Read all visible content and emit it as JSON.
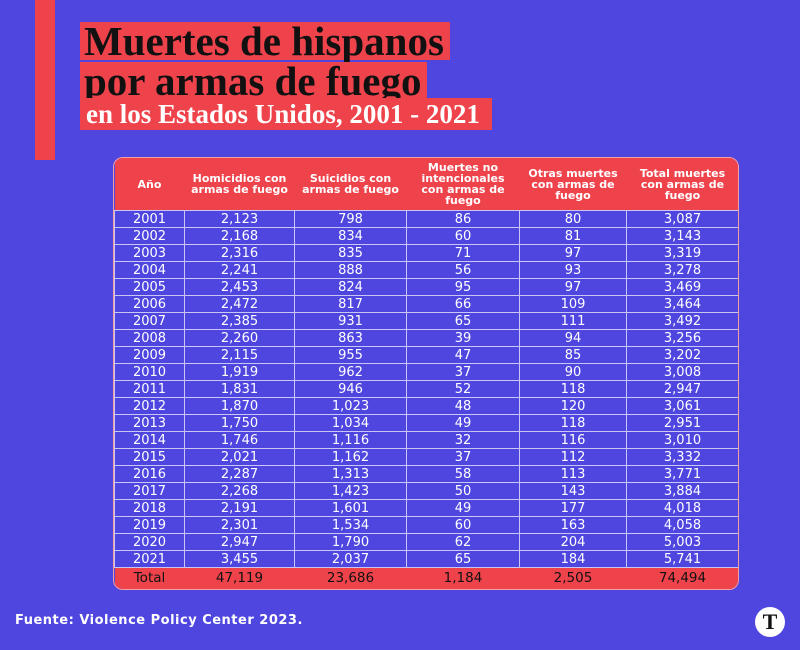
{
  "header": {
    "title": [
      "Muertes de hispanos",
      "por armas de fuego"
    ],
    "subtitle": "en los Estados Unidos, 2001 - 2021"
  },
  "table": {
    "columns": [
      "Año",
      "Homicidios con armas de fuego",
      "Suicidios con armas de fuego",
      "Muertes no intencionales con armas de fuego",
      "Otras muertes con armas de fuego",
      "Total muertes con armas de fuego"
    ],
    "rows": [
      [
        "2001",
        "2,123",
        "798",
        "86",
        "80",
        "3,087"
      ],
      [
        "2002",
        "2,168",
        "834",
        "60",
        "81",
        "3,143"
      ],
      [
        "2003",
        "2,316",
        "835",
        "71",
        "97",
        "3,319"
      ],
      [
        "2004",
        "2,241",
        "888",
        "56",
        "93",
        "3,278"
      ],
      [
        "2005",
        "2,453",
        "824",
        "95",
        "97",
        "3,469"
      ],
      [
        "2006",
        "2,472",
        "817",
        "66",
        "109",
        "3,464"
      ],
      [
        "2007",
        "2,385",
        "931",
        "65",
        "111",
        "3,492"
      ],
      [
        "2008",
        "2,260",
        "863",
        "39",
        "94",
        "3,256"
      ],
      [
        "2009",
        "2,115",
        "955",
        "47",
        "85",
        "3,202"
      ],
      [
        "2010",
        "1,919",
        "962",
        "37",
        "90",
        "3,008"
      ],
      [
        "2011",
        "1,831",
        "946",
        "52",
        "118",
        "2,947"
      ],
      [
        "2012",
        "1,870",
        "1,023",
        "48",
        "120",
        "3,061"
      ],
      [
        "2013",
        "1,750",
        "1,034",
        "49",
        "118",
        "2,951"
      ],
      [
        "2014",
        "1,746",
        "1,116",
        "32",
        "116",
        "3,010"
      ],
      [
        "2015",
        "2,021",
        "1,162",
        "37",
        "112",
        "3,332"
      ],
      [
        "2016",
        "2,287",
        "1,313",
        "58",
        "113",
        "3,771"
      ],
      [
        "2017",
        "2,268",
        "1,423",
        "50",
        "143",
        "3,884"
      ],
      [
        "2018",
        "2,191",
        "1,601",
        "49",
        "177",
        "4,018"
      ],
      [
        "2019",
        "2,301",
        "1,534",
        "60",
        "163",
        "4,058"
      ],
      [
        "2020",
        "2,947",
        "1,790",
        "62",
        "204",
        "5,003"
      ],
      [
        "2021",
        "3,455",
        "2,037",
        "65",
        "184",
        "5,741"
      ]
    ],
    "total": [
      "Total",
      "47,119",
      "23,686",
      "1,184",
      "2,505",
      "74,494"
    ]
  },
  "footer": {
    "source": "Fuente: Violence Policy Center 2023.",
    "logo": "T"
  }
}
